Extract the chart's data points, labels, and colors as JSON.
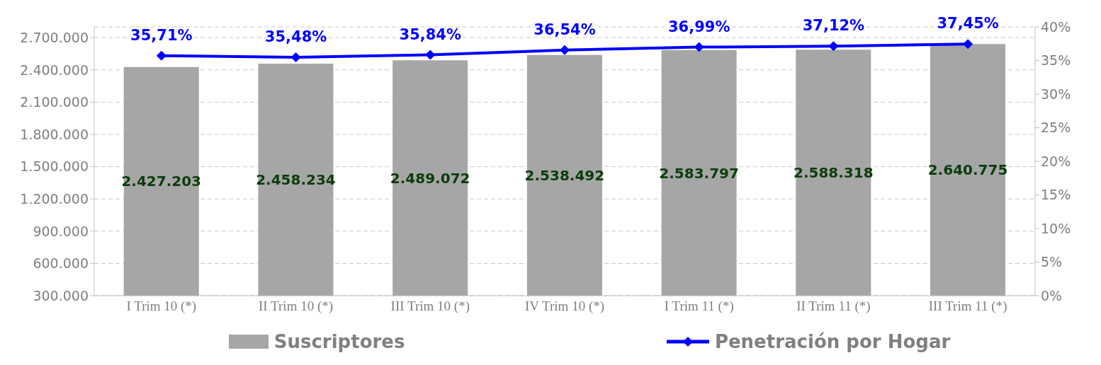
{
  "chart_data": {
    "type": "bar",
    "categories": [
      "I Trim 10 (*)",
      "II Trim 10 (*)",
      "III Trim 10 (*)",
      "IV Trim 10 (*)",
      "I Trim 11 (*)",
      "II Trim 11 (*)",
      "III Trim 11 (*)"
    ],
    "series": [
      {
        "name": "Suscriptores",
        "color": "#a6a6a6",
        "values": [
          2427203,
          2458234,
          2489072,
          2538492,
          2583797,
          2588318,
          2640775
        ],
        "value_labels": [
          "2.427.203",
          "2.458.234",
          "2.489.072",
          "2.538.492",
          "2.583.797",
          "2.588.318",
          "2.640.775"
        ]
      },
      {
        "name": "Penetración por Hogar",
        "type": "line",
        "axis": "y2",
        "color": "#0000ff",
        "values": [
          35.71,
          35.48,
          35.84,
          36.54,
          36.99,
          37.12,
          37.45
        ],
        "value_labels": [
          "35,71%",
          "35,48%",
          "35,84%",
          "36,54%",
          "36,99%",
          "37,12%",
          "37,45%"
        ]
      }
    ],
    "ylim": [
      300000,
      2800000
    ],
    "yticks": [
      {
        "value": 300000,
        "label": "300.000"
      },
      {
        "value": 600000,
        "label": "600.000"
      },
      {
        "value": 900000,
        "label": "900.000"
      },
      {
        "value": 1200000,
        "label": "1.200.000"
      },
      {
        "value": 1500000,
        "label": "1.500.000"
      },
      {
        "value": 1800000,
        "label": "1.800.000"
      },
      {
        "value": 2100000,
        "label": "2.100.000"
      },
      {
        "value": 2400000,
        "label": "2.400.000"
      },
      {
        "value": 2700000,
        "label": "2.700.000"
      }
    ],
    "y2lim": [
      0,
      40
    ],
    "y2ticks": [
      {
        "value": 0,
        "label": "0%"
      },
      {
        "value": 5,
        "label": "5%"
      },
      {
        "value": 10,
        "label": "10%"
      },
      {
        "value": 15,
        "label": "15%"
      },
      {
        "value": 20,
        "label": "20%"
      },
      {
        "value": 25,
        "label": "25%"
      },
      {
        "value": 30,
        "label": "30%"
      },
      {
        "value": 35,
        "label": "35%"
      },
      {
        "value": 40,
        "label": "40%"
      }
    ],
    "grid": "y",
    "legend": "bottom",
    "marker": "diamond"
  }
}
